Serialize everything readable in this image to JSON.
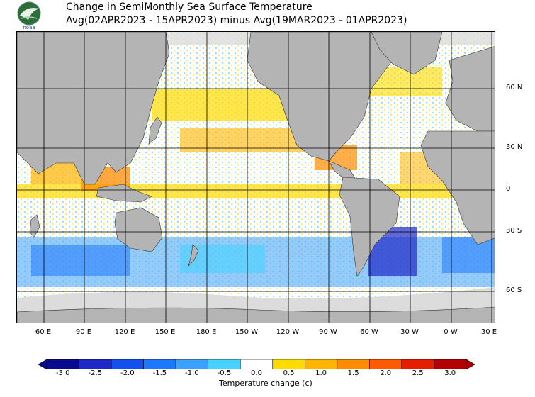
{
  "title_line1": "Change in SemiMonthly Sea Surface Temperature",
  "title_line2": "Avg(02APR2023 - 15APR2023) minus Avg(19MAR2023 - 01APR2023)",
  "logo": {
    "icon": "noaa-logo",
    "text": "noaa"
  },
  "lat_labels": [
    "60 N",
    "30 N",
    "0",
    "30 S",
    "60 S"
  ],
  "lon_labels": [
    "60 E",
    "90 E",
    "120 E",
    "150 E",
    "180 E",
    "150 W",
    "120 W",
    "90 W",
    "60 W",
    "30 W",
    "0 W",
    "30 E"
  ],
  "colorbar": {
    "ticks": [
      "-3.0",
      "-2.5",
      "-2.0",
      "-1.5",
      "-1.0",
      "-0.5",
      "0.0",
      "0.5",
      "1.0",
      "1.5",
      "2.0",
      "2.5",
      "3.0"
    ],
    "colors": [
      "#0a0a8c",
      "#1e28c8",
      "#1450f0",
      "#1e78ff",
      "#3ca0ff",
      "#46d2ff",
      "#ffffff",
      "#ffdc00",
      "#ffb400",
      "#ff8c00",
      "#ff5a00",
      "#e61e00",
      "#b40000"
    ],
    "label": "Temperature change  (c)"
  },
  "colors": {
    "land": "#b4b4b4",
    "sea_ice": "#dcdcdc",
    "grid": "#000000"
  }
}
